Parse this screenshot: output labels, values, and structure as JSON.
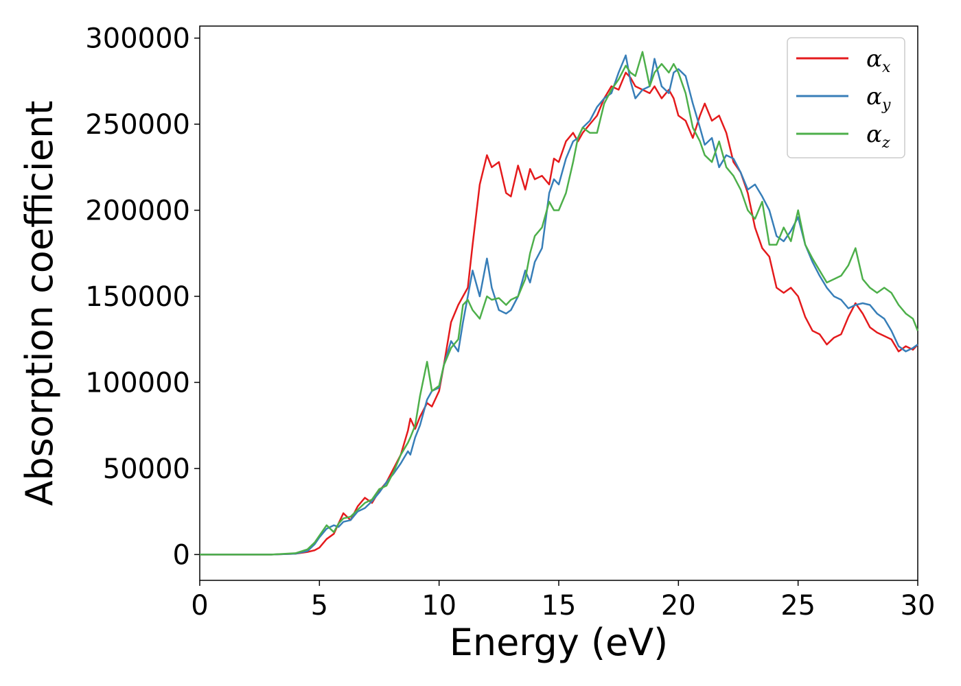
{
  "chart_data": {
    "type": "line",
    "title": "",
    "xlabel": "Energy (eV)",
    "ylabel": "Absorption coefficient",
    "xlim": [
      0,
      30
    ],
    "ylim": [
      -15000,
      307000
    ],
    "xticks": [
      0,
      5,
      10,
      15,
      20,
      25,
      30
    ],
    "yticks": [
      0,
      50000,
      100000,
      150000,
      200000,
      250000,
      300000
    ],
    "grid": false,
    "legend_position": "top-right",
    "series": [
      {
        "name": "α",
        "subscript": "x",
        "color": "#e41a1c",
        "x": [
          0,
          1,
          2,
          3,
          4,
          4.5,
          4.8,
          5.0,
          5.3,
          5.6,
          5.8,
          6.0,
          6.3,
          6.6,
          6.9,
          7.2,
          7.5,
          7.8,
          8.1,
          8.4,
          8.7,
          8.8,
          9.0,
          9.2,
          9.5,
          9.7,
          10.0,
          10.2,
          10.5,
          10.8,
          11.0,
          11.2,
          11.4,
          11.7,
          12.0,
          12.2,
          12.5,
          12.8,
          13.0,
          13.3,
          13.6,
          13.8,
          14.0,
          14.3,
          14.6,
          14.8,
          15.0,
          15.3,
          15.6,
          15.8,
          16.0,
          16.3,
          16.6,
          16.9,
          17.2,
          17.5,
          17.8,
          18.0,
          18.2,
          18.5,
          18.8,
          19.0,
          19.3,
          19.6,
          19.8,
          20.0,
          20.3,
          20.6,
          20.9,
          21.1,
          21.4,
          21.7,
          22.0,
          22.3,
          22.6,
          22.9,
          23.2,
          23.5,
          23.8,
          24.1,
          24.4,
          24.7,
          25.0,
          25.3,
          25.6,
          25.9,
          26.2,
          26.5,
          26.8,
          27.1,
          27.4,
          27.7,
          28.0,
          28.3,
          28.6,
          28.9,
          29.2,
          29.5,
          29.8,
          30.0
        ],
        "y": [
          0,
          0,
          0,
          0,
          500,
          1500,
          2500,
          4000,
          9000,
          12000,
          18000,
          24000,
          20000,
          28000,
          33000,
          30000,
          37000,
          42000,
          50000,
          58000,
          72000,
          79000,
          73000,
          80000,
          88000,
          86000,
          95000,
          110000,
          135000,
          145000,
          150000,
          155000,
          180000,
          215000,
          232000,
          225000,
          228000,
          210000,
          208000,
          226000,
          212000,
          224000,
          218000,
          220000,
          215000,
          230000,
          228000,
          240000,
          245000,
          240000,
          245000,
          250000,
          255000,
          265000,
          272000,
          270000,
          280000,
          277000,
          272000,
          270000,
          268000,
          272000,
          265000,
          270000,
          265000,
          255000,
          252000,
          242000,
          255000,
          262000,
          252000,
          255000,
          245000,
          228000,
          222000,
          210000,
          190000,
          178000,
          173000,
          155000,
          152000,
          155000,
          150000,
          138000,
          130000,
          128000,
          122000,
          126000,
          128000,
          138000,
          146000,
          140000,
          132000,
          129000,
          127000,
          125000,
          118000,
          121000,
          119000,
          122000
        ]
      },
      {
        "name": "α",
        "subscript": "y",
        "color": "#377eb8",
        "x": [
          0,
          1,
          2,
          3,
          4,
          4.5,
          4.8,
          5.0,
          5.3,
          5.6,
          5.8,
          6.0,
          6.3,
          6.6,
          6.9,
          7.2,
          7.5,
          7.8,
          8.1,
          8.4,
          8.7,
          8.8,
          9.0,
          9.2,
          9.5,
          9.7,
          10.0,
          10.2,
          10.5,
          10.8,
          11.0,
          11.2,
          11.4,
          11.7,
          12.0,
          12.2,
          12.5,
          12.8,
          13.0,
          13.3,
          13.6,
          13.8,
          14.0,
          14.3,
          14.6,
          14.8,
          15.0,
          15.3,
          15.6,
          15.8,
          16.0,
          16.3,
          16.6,
          16.9,
          17.2,
          17.5,
          17.8,
          18.0,
          18.2,
          18.5,
          18.8,
          19.0,
          19.3,
          19.6,
          19.8,
          20.0,
          20.3,
          20.6,
          20.9,
          21.1,
          21.4,
          21.7,
          22.0,
          22.3,
          22.6,
          22.9,
          23.2,
          23.5,
          23.8,
          24.1,
          24.4,
          24.7,
          25.0,
          25.3,
          25.6,
          25.9,
          26.2,
          26.5,
          26.8,
          27.1,
          27.4,
          27.7,
          28.0,
          28.3,
          28.6,
          28.9,
          29.2,
          29.5,
          29.8,
          30.0
        ],
        "y": [
          0,
          0,
          0,
          0,
          500,
          2000,
          6000,
          10000,
          15000,
          17000,
          16000,
          19000,
          20000,
          25000,
          27000,
          31000,
          36000,
          42000,
          47000,
          53000,
          60000,
          58000,
          68000,
          75000,
          90000,
          95000,
          97000,
          110000,
          124000,
          118000,
          135000,
          150000,
          165000,
          150000,
          172000,
          155000,
          142000,
          140000,
          142000,
          150000,
          165000,
          158000,
          170000,
          178000,
          210000,
          218000,
          215000,
          230000,
          240000,
          242000,
          248000,
          252000,
          260000,
          265000,
          268000,
          280000,
          290000,
          275000,
          265000,
          270000,
          272000,
          288000,
          272000,
          268000,
          280000,
          282000,
          278000,
          262000,
          248000,
          238000,
          242000,
          225000,
          232000,
          230000,
          222000,
          212000,
          215000,
          208000,
          200000,
          185000,
          182000,
          188000,
          196000,
          180000,
          170000,
          162000,
          155000,
          150000,
          148000,
          143000,
          145000,
          146000,
          145000,
          140000,
          137000,
          130000,
          121000,
          118000,
          120000,
          122000
        ]
      },
      {
        "name": "α",
        "subscript": "z",
        "color": "#4daf4a",
        "x": [
          0,
          1,
          2,
          3,
          4,
          4.5,
          4.8,
          5.0,
          5.3,
          5.6,
          5.8,
          6.0,
          6.3,
          6.6,
          6.9,
          7.2,
          7.5,
          7.8,
          8.1,
          8.4,
          8.7,
          8.8,
          9.0,
          9.2,
          9.5,
          9.7,
          10.0,
          10.2,
          10.5,
          10.8,
          11.0,
          11.2,
          11.4,
          11.7,
          12.0,
          12.2,
          12.5,
          12.8,
          13.0,
          13.3,
          13.6,
          13.8,
          14.0,
          14.3,
          14.6,
          14.8,
          15.0,
          15.3,
          15.6,
          15.8,
          16.0,
          16.3,
          16.6,
          16.9,
          17.2,
          17.5,
          17.8,
          18.0,
          18.2,
          18.5,
          18.8,
          19.0,
          19.3,
          19.6,
          19.8,
          20.0,
          20.3,
          20.6,
          20.9,
          21.1,
          21.4,
          21.7,
          22.0,
          22.3,
          22.6,
          22.9,
          23.2,
          23.5,
          23.8,
          24.1,
          24.4,
          24.7,
          25.0,
          25.3,
          25.6,
          25.9,
          26.2,
          26.5,
          26.8,
          27.1,
          27.4,
          27.7,
          28.0,
          28.3,
          28.6,
          28.9,
          29.2,
          29.5,
          29.8,
          30.0
        ],
        "y": [
          0,
          0,
          0,
          0,
          800,
          3000,
          7000,
          11000,
          17000,
          13000,
          18000,
          21000,
          22000,
          26000,
          30000,
          32000,
          38000,
          40000,
          48000,
          58000,
          65000,
          68000,
          75000,
          92000,
          112000,
          95000,
          98000,
          110000,
          120000,
          125000,
          145000,
          148000,
          142000,
          137000,
          150000,
          148000,
          149000,
          145000,
          148000,
          150000,
          160000,
          175000,
          185000,
          190000,
          205000,
          200000,
          200000,
          210000,
          228000,
          242000,
          248000,
          245000,
          245000,
          262000,
          270000,
          276000,
          284000,
          280000,
          278000,
          292000,
          272000,
          280000,
          285000,
          280000,
          285000,
          280000,
          268000,
          248000,
          240000,
          232000,
          228000,
          240000,
          225000,
          220000,
          212000,
          200000,
          195000,
          205000,
          180000,
          180000,
          190000,
          182000,
          200000,
          180000,
          172000,
          165000,
          158000,
          160000,
          162000,
          168000,
          178000,
          160000,
          155000,
          152000,
          155000,
          152000,
          145000,
          140000,
          137000,
          130000
        ]
      }
    ]
  }
}
